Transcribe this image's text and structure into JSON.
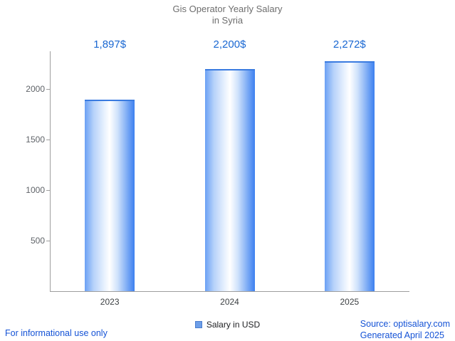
{
  "chart_data": {
    "type": "bar",
    "title": "Gis Operator Yearly Salary in Syria",
    "title_lines": [
      "Gis Operator Yearly Salary",
      "in Syria"
    ],
    "categories": [
      "2023",
      "2024",
      "2025"
    ],
    "values": [
      1897,
      2200,
      2272
    ],
    "value_labels": [
      "1,897$",
      "2,200$",
      "2,272$"
    ],
    "series": [
      {
        "name": "Salary in USD",
        "values": [
          1897,
          2200,
          2272
        ]
      }
    ],
    "legend": [
      "Salary in USD"
    ],
    "legend_position": "bottom-center",
    "xlabel": "",
    "ylabel": "",
    "yticks": [
      500,
      1000,
      1500,
      2000
    ],
    "ylim": [
      0,
      2373
    ],
    "grid": false,
    "colors": {
      "value_label_blue": "#1967d2",
      "bar_edge_blue": "#3c80f0",
      "bar_center": "#ffffff",
      "axis_gray": "#9e9e9e",
      "title_gray": "#6e6e6e",
      "footer_link_blue": "#1553d6"
    }
  },
  "footer": {
    "disclaimer": "For informational use only",
    "source": "Source: optisalary.com",
    "generated": "Generated April 2025"
  }
}
